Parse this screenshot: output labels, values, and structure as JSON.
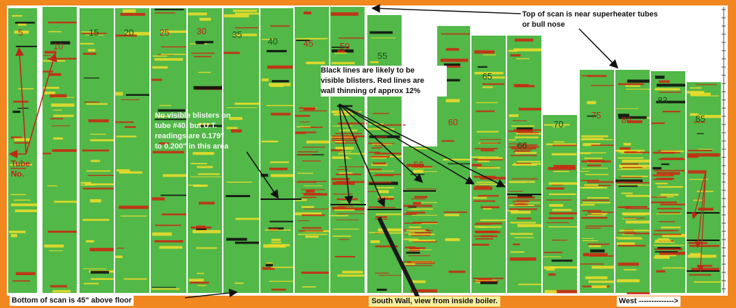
{
  "colors": {
    "frame": "#f0871f",
    "tube": "#52b848",
    "hot": "#c82a12",
    "warm": "#e9dc2a",
    "dark": "#101010"
  },
  "tube_labels": [
    {
      "label": "5",
      "color": "#c0251a"
    },
    {
      "label": "10",
      "color": "#c0251a"
    },
    {
      "label": "15",
      "color": "#1d4d1a"
    },
    {
      "label": "20",
      "color": "#1d4d1a"
    },
    {
      "label": "25",
      "color": "#c0251a"
    },
    {
      "label": "30",
      "color": "#c0251a"
    },
    {
      "label": "35",
      "color": "#1d4d1a"
    },
    {
      "label": "40",
      "color": "#1d4d1a"
    },
    {
      "label": "45",
      "color": "#c0251a"
    },
    {
      "label": "50",
      "color": "#c0251a"
    },
    {
      "label": "55",
      "color": "#1d4d1a"
    },
    {
      "label": "56",
      "color": "#c0251a"
    },
    {
      "label": "60",
      "color": "#c0251a"
    },
    {
      "label": "65",
      "color": "#1d4d1a"
    },
    {
      "label": "66",
      "color": "#1d4d1a"
    },
    {
      "label": "70",
      "color": "#1d4d1a"
    },
    {
      "label": "75",
      "color": "#c0251a"
    },
    {
      "label": "80",
      "color": "#c0251a"
    },
    {
      "label": "83",
      "color": "#1d4d1a"
    },
    {
      "label": "85",
      "color": "#1d4d1a"
    }
  ],
  "annotations": {
    "top_of_scan": "Top of scan is near superheater tubes\nor bull nose",
    "blisters": "Black lines are likely to be\nvisible blisters. Red lines are\nwall thinning of approx 12%",
    "tube40": "No visible blisters on\ntube #40, but U.T.\nreadings are 0.179\"\nto 0.200\" in this area",
    "tube_no": "Tube\nNo.",
    "bottom_of_scan": "Bottom of scan is 45\" above floor",
    "south_wall": "South Wall, view from inside boiler.",
    "west": "West -------------->"
  }
}
